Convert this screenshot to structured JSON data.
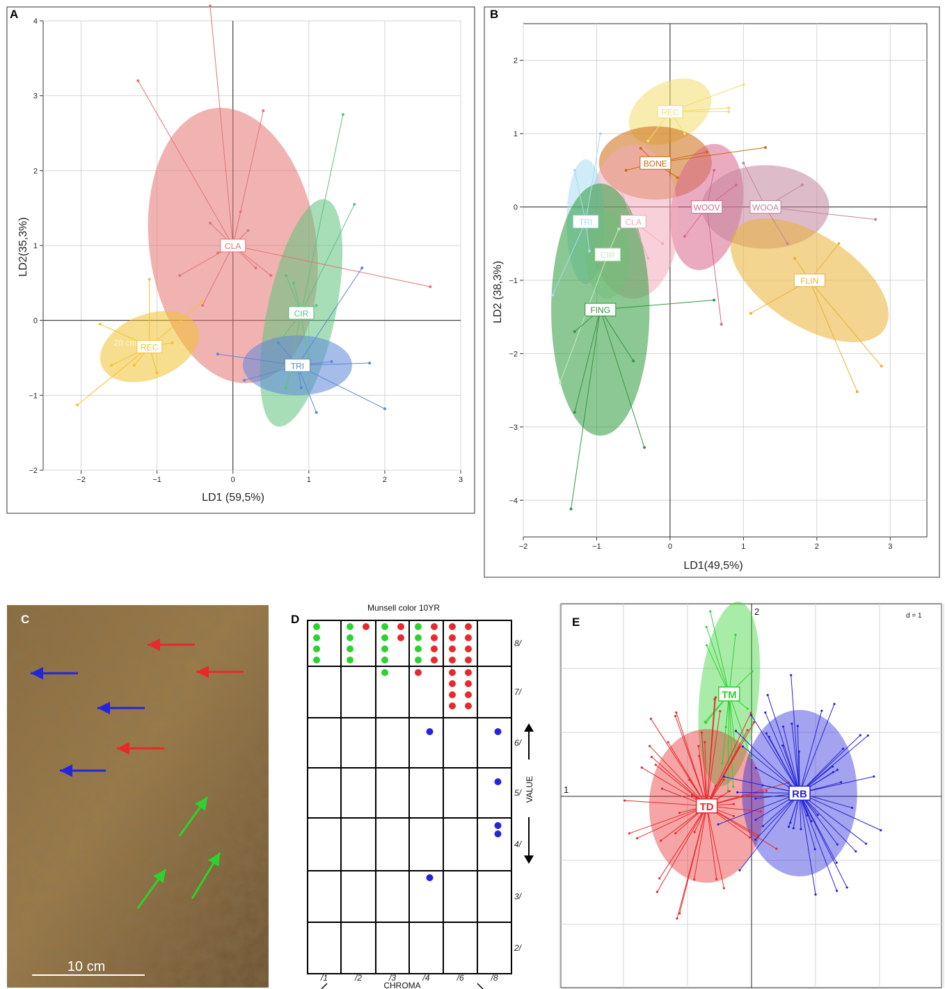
{
  "panels": {
    "A": {
      "letter": "A",
      "xlabel": "LD1 (59,5%)",
      "ylabel": "LD2(35,3%)",
      "stray_label": "20 cm"
    },
    "B": {
      "letter": "B",
      "xlabel": "LD1(49,5%)",
      "ylabel": "LD2 (38,3%)"
    },
    "C": {
      "letter": "C",
      "scale_label": "10 cm"
    },
    "D": {
      "letter": "D",
      "title": "Munsell color   10YR",
      "value_label": "VALUE",
      "chroma_label": "CHROMA"
    },
    "E": {
      "letter": "E",
      "axis1": "1",
      "axis2": "2",
      "scale_note": "d = 1"
    }
  },
  "colors": {
    "red": "#e8292b",
    "green": "#2fd12f",
    "blue": "#2424d8"
  },
  "chart_data": [
    {
      "panel": "A",
      "type": "scatter",
      "xlabel": "LD1 (59,5%)",
      "ylabel": "LD2(35,3%)",
      "xlim": [
        -2.5,
        3.0
      ],
      "ylim": [
        -2,
        4
      ],
      "xticks": [
        -2,
        -1,
        0,
        1,
        2,
        3
      ],
      "yticks": [
        -2,
        -1,
        0,
        1,
        2,
        3,
        4
      ],
      "grid": true,
      "groups": [
        {
          "name": "CLA",
          "color": "#e57373",
          "center": [
            0.0,
            1.0
          ],
          "ellipse": {
            "rx": 1.1,
            "ry": 1.85,
            "angle_deg": -8
          },
          "points": [
            [
              -1.25,
              3.2
            ],
            [
              0.4,
              2.8
            ],
            [
              -0.3,
              4.2
            ],
            [
              -0.3,
              1.3
            ],
            [
              0.1,
              1.45
            ],
            [
              -0.7,
              0.6
            ],
            [
              0.3,
              0.7
            ],
            [
              -0.4,
              0.2
            ],
            [
              0.5,
              0.6
            ],
            [
              2.6,
              0.45
            ],
            [
              -0.2,
              0.9
            ],
            [
              0.2,
              1.2
            ]
          ]
        },
        {
          "name": "CIR",
          "color": "#5ec27c",
          "center": [
            0.9,
            0.1
          ],
          "ellipse": {
            "rx": 0.45,
            "ry": 1.55,
            "angle_deg": 12
          },
          "points": [
            [
              1.45,
              2.75
            ],
            [
              1.6,
              1.55
            ],
            [
              0.7,
              0.6
            ],
            [
              0.8,
              0.5
            ],
            [
              1.1,
              0.2
            ],
            [
              0.6,
              -0.3
            ],
            [
              1.0,
              -0.6
            ],
            [
              0.7,
              -0.9
            ]
          ]
        },
        {
          "name": "TRI",
          "color": "#5c87d9",
          "center": [
            0.85,
            -0.6
          ],
          "ellipse": {
            "rx": 0.72,
            "ry": 0.4,
            "angle_deg": 0
          },
          "points": [
            [
              1.7,
              0.7
            ],
            [
              1.8,
              -0.57
            ],
            [
              2.0,
              -1.18
            ],
            [
              -0.2,
              -0.45
            ],
            [
              0.15,
              -0.8
            ],
            [
              1.1,
              -1.23
            ],
            [
              0.6,
              -0.3
            ],
            [
              1.3,
              -0.55
            ],
            [
              0.9,
              -0.9
            ]
          ]
        },
        {
          "name": "REC",
          "color": "#f1c232",
          "center": [
            -1.1,
            -0.35
          ],
          "ellipse": {
            "rx": 0.68,
            "ry": 0.43,
            "angle_deg": -22
          },
          "points": [
            [
              -2.05,
              -1.13
            ],
            [
              -1.75,
              -0.05
            ],
            [
              -1.1,
              0.55
            ],
            [
              -0.4,
              0.25
            ],
            [
              -1.6,
              -0.6
            ],
            [
              -1.3,
              -0.6
            ],
            [
              -0.8,
              -0.3
            ],
            [
              -1.0,
              -0.7
            ]
          ]
        }
      ]
    },
    {
      "panel": "B",
      "type": "scatter",
      "xlabel": "LD1(49,5%)",
      "ylabel": "LD2 (38,3%)",
      "xlim": [
        -2.0,
        3.5
      ],
      "ylim": [
        -4.5,
        2.5
      ],
      "xticks": [
        -2,
        -1,
        0,
        1,
        2,
        3
      ],
      "yticks": [
        -4,
        -3,
        -2,
        -1,
        0,
        1,
        2
      ],
      "grid": true,
      "groups": [
        {
          "name": "REC",
          "color": "#f3dc6e",
          "center": [
            0.0,
            1.3
          ],
          "ellipse": {
            "rx": 0.6,
            "ry": 0.4,
            "angle_deg": -28
          },
          "points": [
            [
              1.0,
              1.67
            ],
            [
              0.8,
              1.35
            ],
            [
              0.8,
              1.3
            ],
            [
              -0.3,
              0.9
            ],
            [
              0.2,
              1.0
            ]
          ]
        },
        {
          "name": "BONE",
          "color": "#cc6a10",
          "center": [
            -0.2,
            0.6
          ],
          "ellipse": {
            "rx": 0.77,
            "ry": 0.5,
            "angle_deg": 0
          },
          "points": [
            [
              1.3,
              0.81
            ],
            [
              0.5,
              0.75
            ],
            [
              -0.6,
              0.5
            ],
            [
              0.1,
              0.4
            ],
            [
              -0.4,
              0.8
            ]
          ]
        },
        {
          "name": "WOOV",
          "color": "#d9668e",
          "center": [
            0.5,
            0.0
          ],
          "ellipse": {
            "rx": 0.48,
            "ry": 0.87,
            "angle_deg": 10
          },
          "points": [
            [
              0.7,
              -1.6
            ],
            [
              0.9,
              0.3
            ],
            [
              0.2,
              -0.4
            ],
            [
              0.6,
              0.5
            ]
          ]
        },
        {
          "name": "WOOA",
          "color": "#c3849c",
          "center": [
            1.3,
            0.0
          ],
          "ellipse": {
            "rx": 0.87,
            "ry": 0.57,
            "angle_deg": 0
          },
          "points": [
            [
              2.8,
              -0.17
            ],
            [
              1.8,
              0.3
            ],
            [
              1.0,
              0.6
            ],
            [
              1.6,
              -0.5
            ]
          ]
        },
        {
          "name": "CLA",
          "color": "#f3a9bb",
          "center": [
            -0.5,
            -0.2
          ],
          "ellipse": {
            "rx": 0.62,
            "ry": 1.05,
            "angle_deg": 0
          },
          "points": [
            [
              -0.1,
              -0.5
            ],
            [
              -0.7,
              0.3
            ],
            [
              -0.3,
              -0.7
            ]
          ]
        },
        {
          "name": "FLIN",
          "color": "#e9b233",
          "center": [
            1.9,
            -1.0
          ],
          "ellipse": {
            "rx": 1.22,
            "ry": 0.62,
            "angle_deg": 33
          },
          "points": [
            [
              2.88,
              -2.17
            ],
            [
              2.55,
              -2.52
            ],
            [
              1.1,
              -1.45
            ],
            [
              2.3,
              -0.5
            ],
            [
              1.7,
              -0.7
            ]
          ]
        },
        {
          "name": "TRI",
          "color": "#a8dcf0",
          "center": [
            -1.15,
            -0.2
          ],
          "ellipse": {
            "rx": 0.26,
            "ry": 0.85,
            "angle_deg": 0
          },
          "points": [
            [
              -1.6,
              -1.2
            ],
            [
              -0.95,
              1.0
            ],
            [
              -1.3,
              0.5
            ],
            [
              -1.1,
              -0.6
            ]
          ]
        },
        {
          "name": "CIR",
          "color": "#c7e8c6",
          "center": [
            -0.85,
            -0.65
          ],
          "ellipse": {
            "rx": 0.3,
            "ry": 0.6,
            "angle_deg": 0
          },
          "points": [
            [
              -1.5,
              -2.4
            ],
            [
              -0.7,
              -0.3
            ]
          ]
        },
        {
          "name": "FING",
          "color": "#2e9a3a",
          "center": [
            -0.95,
            -1.4
          ],
          "ellipse": {
            "rx": 0.67,
            "ry": 1.72,
            "angle_deg": 0
          },
          "points": [
            [
              -1.35,
              -4.12
            ],
            [
              -1.3,
              -2.8
            ],
            [
              0.6,
              -1.27
            ],
            [
              -0.35,
              -3.28
            ],
            [
              -1.3,
              -1.7
            ],
            [
              -0.5,
              -2.1
            ]
          ]
        }
      ]
    },
    {
      "panel": "D",
      "type": "table",
      "title": "Munsell color   10YR",
      "value_rows": [
        "8/",
        "7/",
        "6/",
        "5/",
        "4/",
        "3/",
        "2/"
      ],
      "chroma_columns": [
        "/1",
        "/2",
        "/3",
        "/4",
        "/6",
        "/8"
      ],
      "dot_counts": [
        {
          "value": "8/",
          "chroma": "/1",
          "color": "green",
          "count": 4
        },
        {
          "value": "8/",
          "chroma": "/2",
          "color": "green",
          "count": 4
        },
        {
          "value": "8/",
          "chroma": "/2",
          "color": "red",
          "count": 1
        },
        {
          "value": "8/",
          "chroma": "/3",
          "color": "green",
          "count": 4
        },
        {
          "value": "8/",
          "chroma": "/3",
          "color": "red",
          "count": 2
        },
        {
          "value": "8/",
          "chroma": "/4",
          "color": "green",
          "count": 4
        },
        {
          "value": "8/",
          "chroma": "/4",
          "color": "red",
          "count": 4
        },
        {
          "value": "8/",
          "chroma": "/6",
          "color": "red",
          "count": 8
        },
        {
          "value": "7/",
          "chroma": "/3",
          "color": "green",
          "count": 1
        },
        {
          "value": "7/",
          "chroma": "/4",
          "color": "red",
          "count": 1
        },
        {
          "value": "7/",
          "chroma": "/6",
          "color": "red",
          "count": 8
        },
        {
          "value": "6/",
          "chroma": "/4",
          "color": "blue",
          "count": 1
        },
        {
          "value": "6/",
          "chroma": "/8",
          "color": "blue",
          "count": 1
        },
        {
          "value": "5/",
          "chroma": "/8",
          "color": "blue",
          "count": 1
        },
        {
          "value": "4/",
          "chroma": "/8",
          "color": "blue",
          "count": 2
        },
        {
          "value": "3/",
          "chroma": "/4",
          "color": "blue",
          "count": 1
        }
      ]
    },
    {
      "panel": "E",
      "type": "scatter",
      "scale": "d = 1",
      "groups": [
        {
          "name": "TM",
          "color": "#2fd12f",
          "center": [
            -0.35,
            1.6
          ],
          "ellipse": {
            "rx": 0.46,
            "ry": 1.45,
            "angle_deg": 6
          }
        },
        {
          "name": "TD",
          "color": "#e8292b",
          "center": [
            -0.7,
            -0.15
          ],
          "ellipse": {
            "rx": 0.9,
            "ry": 1.2,
            "angle_deg": 0
          }
        },
        {
          "name": "RB",
          "color": "#2424d8",
          "center": [
            0.75,
            0.05
          ],
          "ellipse": {
            "rx": 0.9,
            "ry": 1.3,
            "angle_deg": 0
          }
        }
      ]
    }
  ]
}
